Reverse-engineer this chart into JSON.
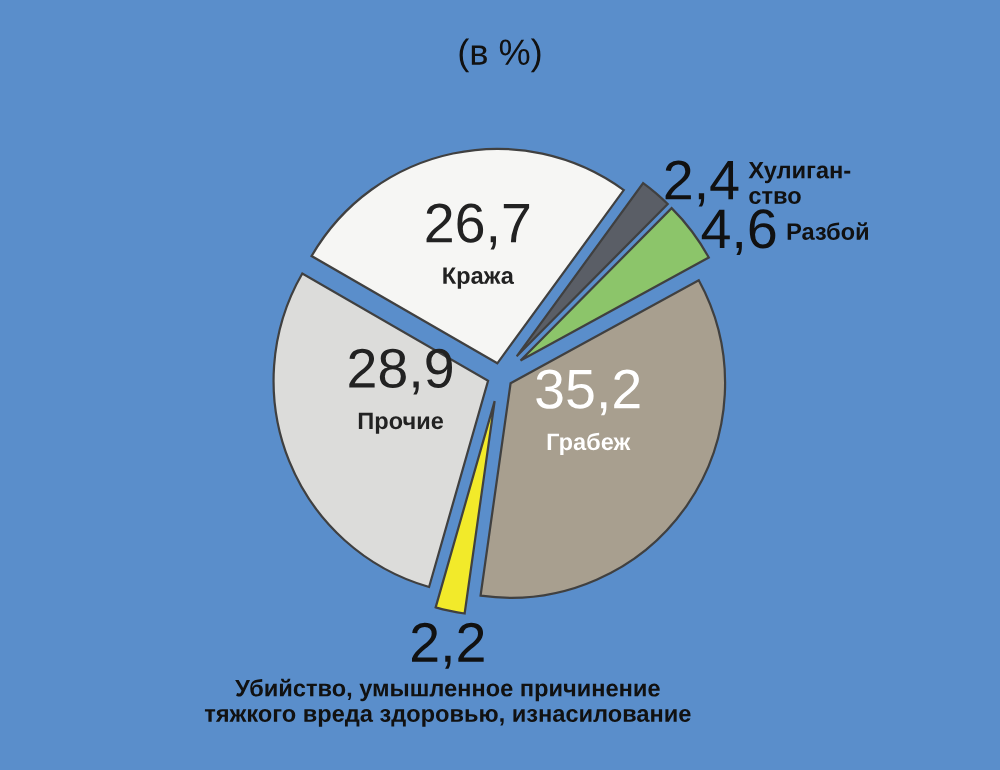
{
  "chart_data": {
    "type": "pie",
    "title": "(в %)",
    "categories": [
      "Кража",
      "Хулиган-\nство",
      "Разбой",
      "Грабеж",
      "Убийство, умышленное причинение\nтяжкого вреда здоровью, изнасилование",
      "Прочие"
    ],
    "values": [
      26.7,
      2.4,
      4.6,
      35.2,
      2.2,
      28.9
    ],
    "value_labels": [
      "26,7",
      "2,4",
      "4,6",
      "35,2",
      "2,2",
      "28,9"
    ],
    "colors": [
      "#f6f6f4",
      "#5a5e66",
      "#8cc56a",
      "#a89f8f",
      "#f2ea2a",
      "#dcdcda"
    ],
    "legend": false
  }
}
